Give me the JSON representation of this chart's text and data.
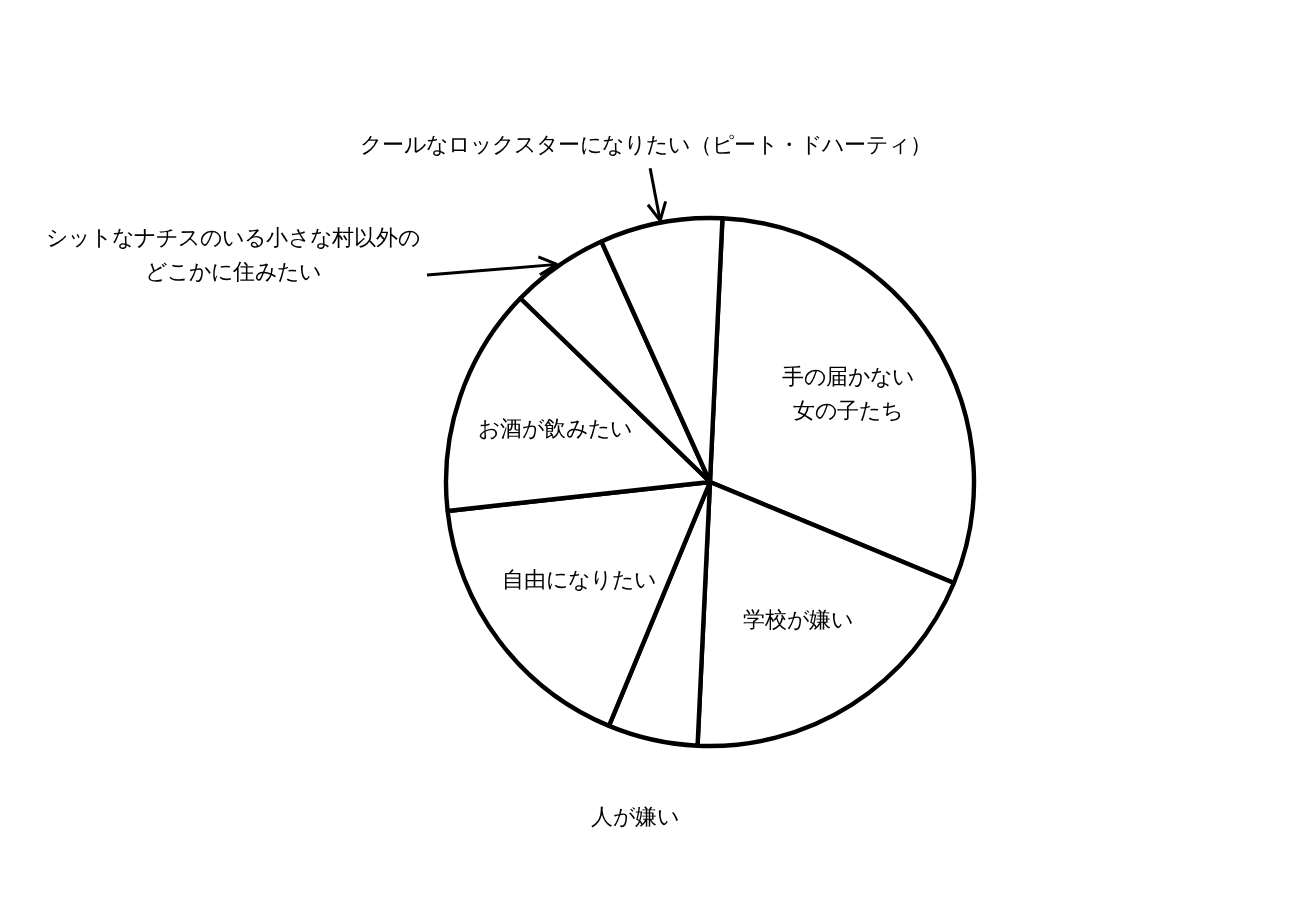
{
  "chart_data": {
    "type": "pie",
    "categories": [
      "手の届かない女の子たち",
      "学校が嫌い",
      "人が嫌い",
      "自由になりたい",
      "お酒が飲みたい",
      "シットなナチスのいる小さな村以外のどこかに住みたい",
      "クールなロックスターになりたい（ピート・ドハーティ）"
    ],
    "values": [
      30.5,
      19.5,
      5.5,
      17,
      14,
      6,
      7.5
    ],
    "colors": [
      "#ffffff",
      "#ffffff",
      "#ffffff",
      "#ffffff",
      "#ffffff",
      "#ffffff",
      "#ffffff"
    ]
  }
}
